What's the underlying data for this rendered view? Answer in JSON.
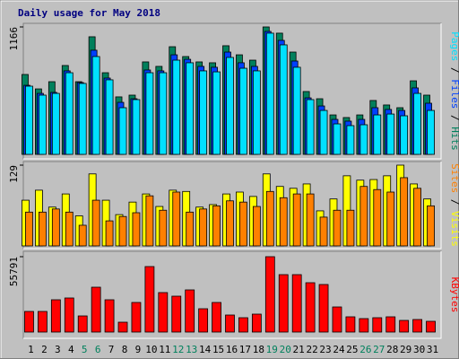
{
  "title": "Daily usage for May 2018",
  "legend_separator": " / ",
  "days": [
    "1",
    "2",
    "3",
    "4",
    "5",
    "6",
    "7",
    "8",
    "9",
    "10",
    "11",
    "12",
    "13",
    "14",
    "15",
    "16",
    "17",
    "18",
    "19",
    "20",
    "21",
    "22",
    "23",
    "24",
    "25",
    "26",
    "27",
    "28",
    "29",
    "30",
    "31"
  ],
  "weekend_days": [
    "5",
    "6",
    "12",
    "13",
    "19",
    "20",
    "26",
    "27"
  ],
  "weekday_color": "#000000",
  "weekend_color": "#00805c",
  "chart_data": [
    {
      "type": "bar",
      "ylim": [
        0,
        1166
      ],
      "yticks": [
        1166
      ],
      "series": [
        {
          "name": "Hits",
          "color": "#00805c",
          "values": [
            731,
            599,
            665,
            813,
            665,
            1076,
            747,
            526,
            542,
            846,
            805,
            985,
            895,
            846,
            838,
            994,
            911,
            862,
            1166,
            1109,
            936,
            575,
            509,
            361,
            337,
            361,
            493,
            452,
            427,
            673,
            542
          ]
        },
        {
          "name": "Files",
          "color": "#0040ff",
          "values": [
            632,
            558,
            567,
            764,
            657,
            953,
            698,
            476,
            509,
            772,
            764,
            911,
            870,
            805,
            797,
            936,
            838,
            805,
            1125,
            1043,
            854,
            517,
            443,
            320,
            304,
            320,
            427,
            411,
            402,
            608,
            468
          ]
        },
        {
          "name": "Pages",
          "color": "#00e0ff",
          "values": [
            624,
            542,
            558,
            747,
            649,
            895,
            682,
            427,
            501,
            747,
            747,
            862,
            838,
            764,
            755,
            887,
            788,
            764,
            1109,
            1002,
            797,
            501,
            402,
            279,
            263,
            271,
            361,
            369,
            353,
            558,
            402
          ]
        }
      ]
    },
    {
      "type": "bar",
      "ylim": [
        0,
        129
      ],
      "yticks": [
        129
      ],
      "series": [
        {
          "name": "Visits",
          "color": "#ffff00",
          "values": [
            73,
            89,
            62,
            83,
            48,
            115,
            73,
            50,
            70,
            83,
            63,
            89,
            87,
            62,
            66,
            83,
            86,
            79,
            115,
            95,
            92,
            99,
            56,
            75,
            112,
            105,
            106,
            112,
            129,
            99,
            75
          ]
        },
        {
          "name": "Sites",
          "color": "#ff8000",
          "values": [
            54,
            54,
            59,
            54,
            33,
            73,
            40,
            47,
            53,
            80,
            57,
            86,
            54,
            59,
            64,
            72,
            70,
            63,
            87,
            77,
            83,
            83,
            46,
            57,
            57,
            95,
            90,
            86,
            109,
            92,
            64
          ]
        }
      ]
    },
    {
      "type": "bar",
      "ylim": [
        0,
        55791
      ],
      "yticks": [
        55791
      ],
      "series": [
        {
          "name": "KBytes",
          "color": "#ff0000",
          "values": [
            15276,
            15276,
            23911,
            25239,
            11955,
            33209,
            23911,
            7306,
            21918,
            48485,
            29224,
            26567,
            31216,
            17268,
            21918,
            12619,
            10627,
            13283,
            55791,
            42507,
            42507,
            36530,
            35201,
            18597,
            11291,
            9963,
            10627,
            11291,
            8634,
            9299,
            7970
          ]
        }
      ]
    }
  ]
}
